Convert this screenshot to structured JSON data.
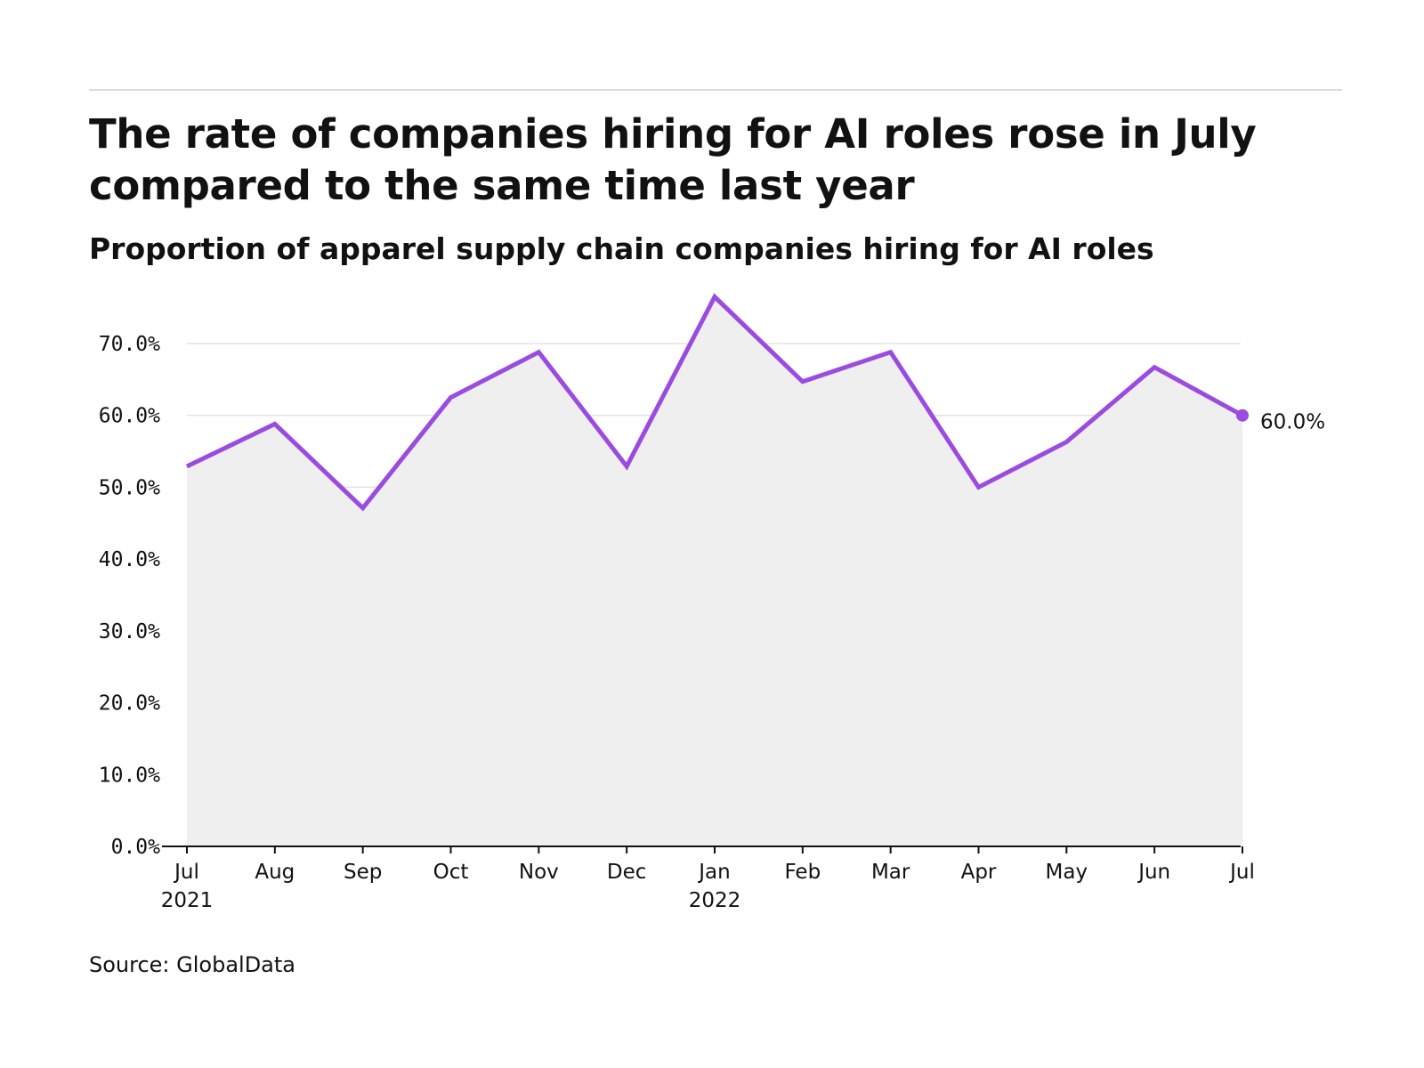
{
  "title": "The rate of companies hiring for AI roles rose in July compared to the same time last year",
  "subtitle": "Proportion of apparel supply chain companies hiring for AI roles",
  "source": "Source: GlobalData",
  "colors": {
    "line": "#9b4be0",
    "area": "#efefef",
    "grid": "#e3e3e3",
    "axis": "#111111"
  },
  "chart_data": {
    "type": "area",
    "x": [
      "Jul",
      "Aug",
      "Sep",
      "Oct",
      "Nov",
      "Dec",
      "Jan",
      "Feb",
      "Mar",
      "Apr",
      "May",
      "Jun",
      "Jul"
    ],
    "x_year_labels": [
      "2021",
      "",
      "",
      "",
      "",
      "",
      "2022",
      "",
      "",
      "",
      "",
      "",
      ""
    ],
    "series": [
      {
        "values": [
          52.9,
          58.8,
          47.1,
          62.5,
          68.8,
          52.9,
          76.5,
          64.7,
          68.8,
          50.0,
          56.3,
          66.7,
          60.0
        ]
      }
    ],
    "end_label": "60.0%",
    "y_ticks": [
      "0.0%",
      "10.0%",
      "20.0%",
      "30.0%",
      "40.0%",
      "50.0%",
      "60.0%",
      "70.0%"
    ],
    "ylim": [
      0,
      70
    ],
    "grid": true,
    "xlabel": "",
    "ylabel": ""
  }
}
